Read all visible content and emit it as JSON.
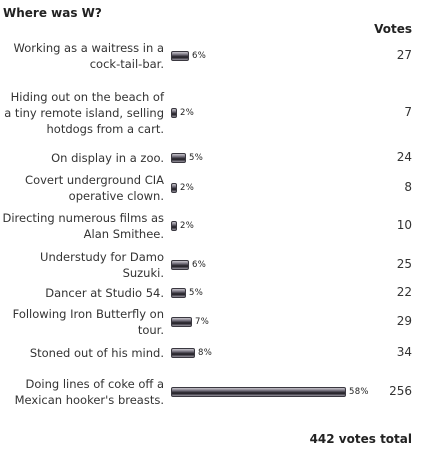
{
  "poll": {
    "title": "Where was W?",
    "votes_header": "Votes",
    "total_label": "442 votes total",
    "bar_color": "#3a3840"
  },
  "options": [
    {
      "label": "Working as a waitress in a cock-tail-bar.",
      "percent": 6,
      "percent_label": "6%",
      "votes": "27"
    },
    {
      "label": "Hiding out on the beach of a tiny remote island, selling hotdogs from a cart.",
      "percent": 2,
      "percent_label": "2%",
      "votes": "7"
    },
    {
      "label": "On display in a zoo.",
      "percent": 5,
      "percent_label": "5%",
      "votes": "24"
    },
    {
      "label": "Covert underground CIA operative clown.",
      "percent": 2,
      "percent_label": "2%",
      "votes": "8"
    },
    {
      "label": "Directing numerous films as Alan Smithee.",
      "percent": 2,
      "percent_label": "2%",
      "votes": "10"
    },
    {
      "label": "Understudy for Damo Suzuki.",
      "percent": 6,
      "percent_label": "6%",
      "votes": "25"
    },
    {
      "label": "Dancer at Studio 54.",
      "percent": 5,
      "percent_label": "5%",
      "votes": "22"
    },
    {
      "label": "Following Iron Butterfly on tour.",
      "percent": 7,
      "percent_label": "7%",
      "votes": "29"
    },
    {
      "label": "Stoned out of his mind.",
      "percent": 8,
      "percent_label": "8%",
      "votes": "34"
    },
    {
      "label": "Doing lines of coke off a Mexican hooker's breasts.",
      "percent": 58,
      "percent_label": "58%",
      "votes": "256"
    }
  ]
}
